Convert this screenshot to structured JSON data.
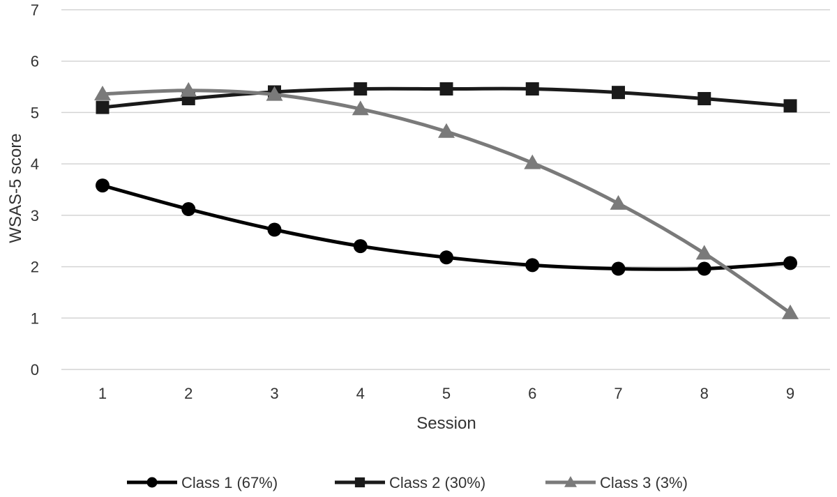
{
  "chart_data": {
    "type": "line",
    "title": "",
    "xlabel": "Session",
    "ylabel": "WSAS-5 score",
    "x": [
      1,
      2,
      3,
      4,
      5,
      6,
      7,
      8,
      9
    ],
    "ylim": [
      0,
      7
    ],
    "yticks": [
      0,
      1,
      2,
      3,
      4,
      5,
      6,
      7
    ],
    "grid": "horizontal",
    "legend_position": "bottom",
    "series": [
      {
        "name": "Class 1 (67%)",
        "marker": "circle",
        "color": "#000000",
        "values": [
          3.58,
          3.12,
          2.72,
          2.4,
          2.18,
          2.03,
          1.96,
          1.96,
          2.07
        ]
      },
      {
        "name": "Class 2 (30%)",
        "marker": "square",
        "color": "#1a1a1a",
        "values": [
          5.1,
          5.27,
          5.4,
          5.46,
          5.46,
          5.46,
          5.39,
          5.27,
          5.13
        ]
      },
      {
        "name": "Class 3 (3%)",
        "marker": "triangle",
        "color": "#7a7a7a",
        "values": [
          5.36,
          5.43,
          5.35,
          5.07,
          4.63,
          4.02,
          3.23,
          2.26,
          1.1
        ]
      }
    ]
  }
}
